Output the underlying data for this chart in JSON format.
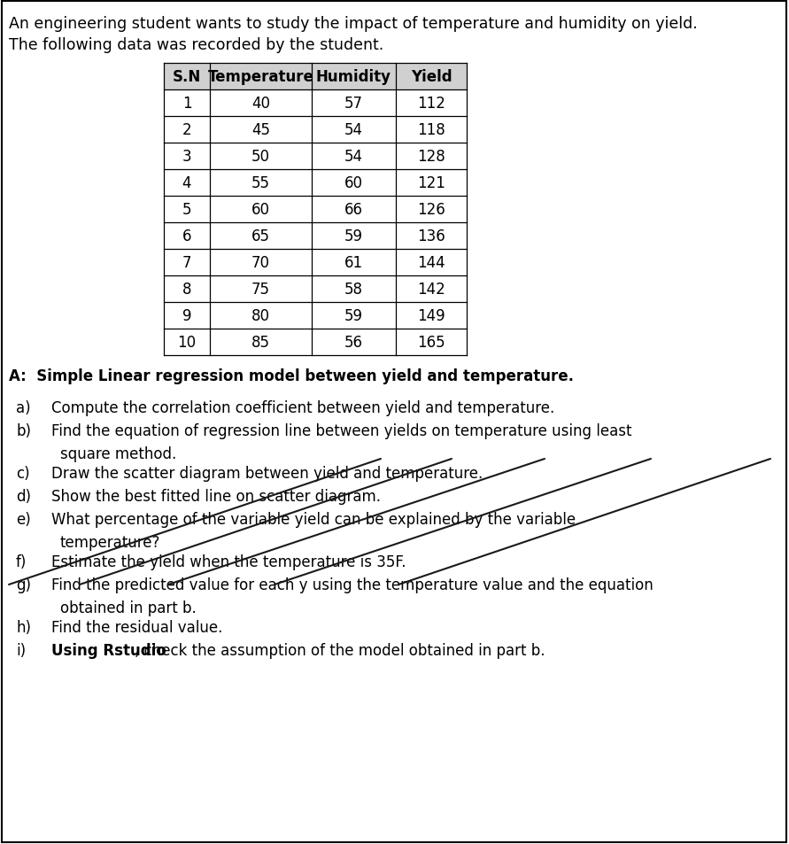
{
  "title_line1": "An engineering student wants to study the impact of temperature and humidity on yield.",
  "title_line2": "The following data was recorded by the student.",
  "table_headers": [
    "S.N",
    "Temperature",
    "Humidity",
    "Yield"
  ],
  "table_data": [
    [
      1,
      40,
      57,
      112
    ],
    [
      2,
      45,
      54,
      118
    ],
    [
      3,
      50,
      54,
      128
    ],
    [
      4,
      55,
      60,
      121
    ],
    [
      5,
      60,
      66,
      126
    ],
    [
      6,
      65,
      59,
      136
    ],
    [
      7,
      70,
      61,
      144
    ],
    [
      8,
      75,
      58,
      142
    ],
    [
      9,
      80,
      59,
      149
    ],
    [
      10,
      85,
      56,
      165
    ]
  ],
  "header_bg": "#d0d0d0",
  "section_title": "A:  Simple Linear regression model between yield and temperature.",
  "items": [
    {
      "label": "a)",
      "text": "Compute the correlation coefficient between yield and temperature.",
      "wrap": false
    },
    {
      "label": "b)",
      "text": "Find the equation of regression line between yields on temperature using least",
      "line2": "square method.",
      "wrap": true
    },
    {
      "label": "c)",
      "text": "Draw the scatter diagram between yield and temperature.",
      "wrap": false,
      "strike": true
    },
    {
      "label": "d)",
      "text": "Show the best fitted line on scatter diagram.",
      "wrap": false,
      "strike": true
    },
    {
      "label": "e)",
      "text": "What percentage of the variable yield can be explained by the variable",
      "line2": "temperature?",
      "wrap": true,
      "strike": true
    },
    {
      "label": "f)",
      "text": "Estimate the yield when the temperature is 35F.",
      "wrap": false,
      "strike": true
    },
    {
      "label": "g)",
      "text": "Find the predicted value for each y using the temperature value and the equation",
      "line2": "obtained in part b.",
      "wrap": true
    },
    {
      "label": "h)",
      "text": "Find the residual value.",
      "wrap": false
    },
    {
      "label": "i)",
      "text": "Using Rstudio, check the assumption of the model obtained in part b.",
      "wrap": false,
      "bold_prefix": "Using Rstudio"
    }
  ],
  "bg_color": "#ffffff",
  "text_color": "#000000",
  "border_color": "#000000",
  "outer_border": true
}
